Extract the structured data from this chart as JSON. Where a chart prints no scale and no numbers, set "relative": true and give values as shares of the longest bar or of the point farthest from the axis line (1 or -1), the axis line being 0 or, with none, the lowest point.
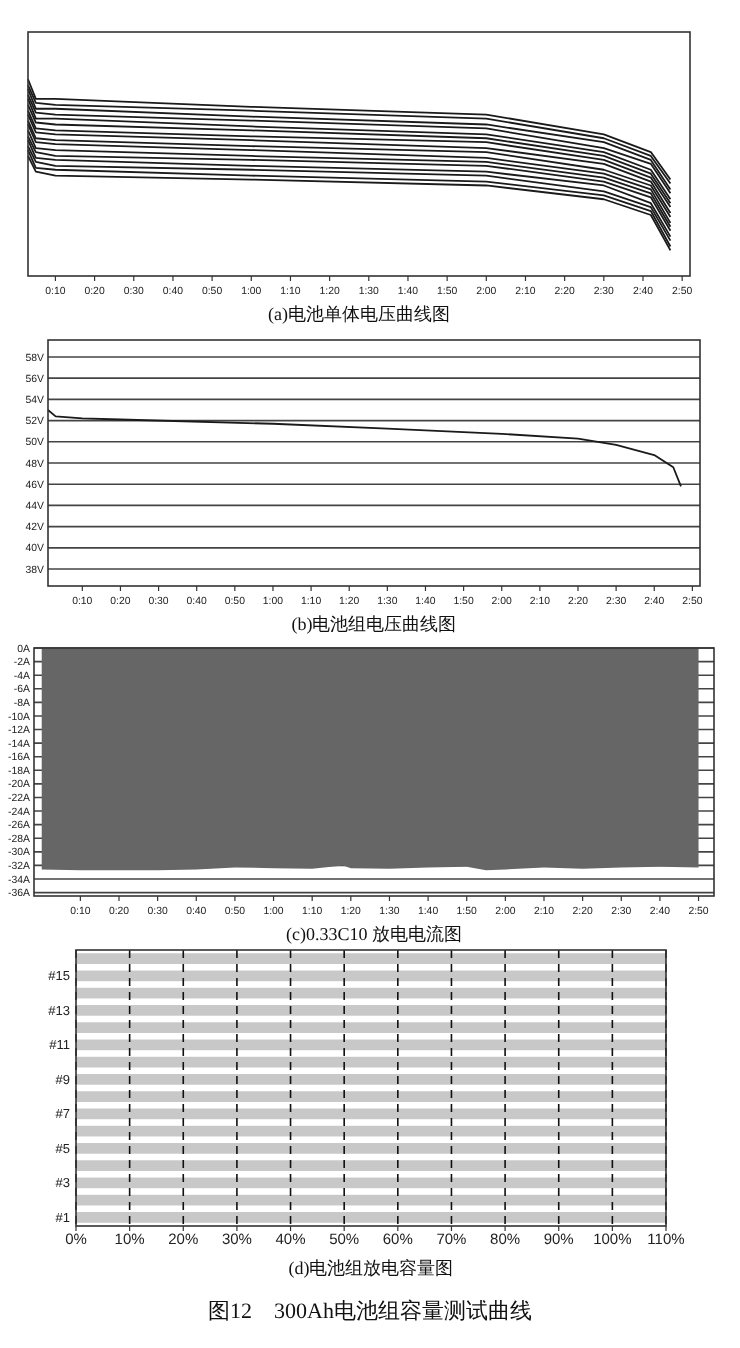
{
  "chart_data": [
    {
      "type": "line",
      "title": "(a)电池单体电压曲线图",
      "relative": true,
      "x": [
        3,
        5,
        10,
        60,
        120,
        150,
        162,
        167
      ],
      "xlim": [
        3,
        172
      ],
      "xticks": [
        {
          "value": 10,
          "label": "0:10"
        },
        {
          "value": 20,
          "label": "0:20"
        },
        {
          "value": 30,
          "label": "0:30"
        },
        {
          "value": 40,
          "label": "0:40"
        },
        {
          "value": 50,
          "label": "0:50"
        },
        {
          "value": 60,
          "label": "1:00"
        },
        {
          "value": 70,
          "label": "1:10"
        },
        {
          "value": 80,
          "label": "1:20"
        },
        {
          "value": 90,
          "label": "1:30"
        },
        {
          "value": 100,
          "label": "1:40"
        },
        {
          "value": 110,
          "label": "1:50"
        },
        {
          "value": 120,
          "label": "2:00"
        },
        {
          "value": 130,
          "label": "2:10"
        },
        {
          "value": 140,
          "label": "2:20"
        },
        {
          "value": 150,
          "label": "2:30"
        },
        {
          "value": 160,
          "label": "2:40"
        },
        {
          "value": 170,
          "label": "2:50"
        }
      ],
      "series": [
        {
          "color": "#1a1a1a",
          "values": [
            1.0,
            0.9,
            0.9,
            0.86,
            0.82,
            0.72,
            0.63,
            0.49
          ]
        },
        {
          "color": "#1a1a1a",
          "values": [
            0.97,
            0.88,
            0.87,
            0.84,
            0.8,
            0.7,
            0.61,
            0.47
          ]
        },
        {
          "color": "#1a1a1a",
          "values": [
            0.95,
            0.85,
            0.85,
            0.81,
            0.77,
            0.68,
            0.59,
            0.44
          ]
        },
        {
          "color": "#1a1a1a",
          "values": [
            0.92,
            0.83,
            0.82,
            0.79,
            0.75,
            0.65,
            0.57,
            0.42
          ]
        },
        {
          "color": "#1a1a1a",
          "values": [
            0.9,
            0.8,
            0.8,
            0.76,
            0.72,
            0.63,
            0.54,
            0.39
          ]
        },
        {
          "color": "#1a1a1a",
          "values": [
            0.87,
            0.78,
            0.77,
            0.74,
            0.7,
            0.61,
            0.52,
            0.37
          ]
        },
        {
          "color": "#1a1a1a",
          "values": [
            0.84,
            0.75,
            0.74,
            0.71,
            0.68,
            0.59,
            0.5,
            0.35
          ]
        },
        {
          "color": "#1a1a1a",
          "values": [
            0.82,
            0.73,
            0.72,
            0.69,
            0.65,
            0.57,
            0.48,
            0.32
          ]
        },
        {
          "color": "#1a1a1a",
          "values": [
            0.79,
            0.7,
            0.69,
            0.66,
            0.63,
            0.54,
            0.46,
            0.3
          ]
        },
        {
          "color": "#1a1a1a",
          "values": [
            0.77,
            0.68,
            0.67,
            0.64,
            0.6,
            0.52,
            0.44,
            0.27
          ]
        },
        {
          "color": "#1a1a1a",
          "values": [
            0.74,
            0.65,
            0.64,
            0.61,
            0.58,
            0.5,
            0.42,
            0.25
          ]
        },
        {
          "color": "#1a1a1a",
          "values": [
            0.71,
            0.63,
            0.61,
            0.59,
            0.56,
            0.48,
            0.4,
            0.23
          ]
        },
        {
          "color": "#1a1a1a",
          "values": [
            0.69,
            0.6,
            0.59,
            0.56,
            0.53,
            0.46,
            0.37,
            0.2
          ]
        },
        {
          "color": "#1a1a1a",
          "values": [
            0.66,
            0.58,
            0.56,
            0.54,
            0.51,
            0.43,
            0.35,
            0.18
          ]
        },
        {
          "color": "#1a1a1a",
          "values": [
            0.64,
            0.55,
            0.54,
            0.51,
            0.48,
            0.41,
            0.33,
            0.15
          ]
        },
        {
          "color": "#1a1a1a",
          "values": [
            0.61,
            0.53,
            0.51,
            0.49,
            0.46,
            0.39,
            0.31,
            0.13
          ]
        }
      ]
    },
    {
      "type": "line",
      "title": "(b)电池组电压曲线图",
      "grid": "y",
      "x": [
        1,
        3,
        10,
        20,
        60,
        90,
        120,
        140,
        150,
        160,
        165,
        167
      ],
      "xlim": [
        1,
        172
      ],
      "ylim": [
        36.4,
        59.6
      ],
      "xticks": [
        {
          "value": 10,
          "label": "0:10"
        },
        {
          "value": 20,
          "label": "0:20"
        },
        {
          "value": 30,
          "label": "0:30"
        },
        {
          "value": 40,
          "label": "0:40"
        },
        {
          "value": 50,
          "label": "0:50"
        },
        {
          "value": 60,
          "label": "1:00"
        },
        {
          "value": 70,
          "label": "1:10"
        },
        {
          "value": 80,
          "label": "1:20"
        },
        {
          "value": 90,
          "label": "1:30"
        },
        {
          "value": 100,
          "label": "1:40"
        },
        {
          "value": 110,
          "label": "1:50"
        },
        {
          "value": 120,
          "label": "2:00"
        },
        {
          "value": 130,
          "label": "2:10"
        },
        {
          "value": 140,
          "label": "2:20"
        },
        {
          "value": 150,
          "label": "2:30"
        },
        {
          "value": 160,
          "label": "2:40"
        },
        {
          "value": 170,
          "label": "2:50"
        }
      ],
      "yticks": [
        {
          "value": 38,
          "label": "38V"
        },
        {
          "value": 40,
          "label": "40V"
        },
        {
          "value": 42,
          "label": "42V"
        },
        {
          "value": 44,
          "label": "44V"
        },
        {
          "value": 46,
          "label": "46V"
        },
        {
          "value": 48,
          "label": "48V"
        },
        {
          "value": 50,
          "label": "50V"
        },
        {
          "value": 52,
          "label": "52V"
        },
        {
          "value": 54,
          "label": "54V"
        },
        {
          "value": 56,
          "label": "56V"
        },
        {
          "value": 58,
          "label": "58V"
        }
      ],
      "series": [
        {
          "color": "#1a1a1a",
          "values": [
            53.0,
            52.4,
            52.2,
            52.1,
            51.7,
            51.25,
            50.75,
            50.3,
            49.7,
            48.75,
            47.6,
            45.8
          ]
        }
      ]
    },
    {
      "type": "area",
      "title": "(c)0.33C10 放电电流图",
      "grid": "y",
      "x": [
        0,
        10,
        20,
        30,
        40,
        50,
        60,
        70,
        78,
        80,
        90,
        100,
        110,
        115,
        120,
        130,
        140,
        150,
        160,
        170
      ],
      "xlim": [
        -2,
        174
      ],
      "ylim": [
        -36.5,
        0
      ],
      "xticks": [
        {
          "value": 10,
          "label": "0:10"
        },
        {
          "value": 20,
          "label": "0:20"
        },
        {
          "value": 30,
          "label": "0:30"
        },
        {
          "value": 40,
          "label": "0:40"
        },
        {
          "value": 50,
          "label": "0:50"
        },
        {
          "value": 60,
          "label": "1:00"
        },
        {
          "value": 70,
          "label": "1:10"
        },
        {
          "value": 80,
          "label": "1:20"
        },
        {
          "value": 90,
          "label": "1:30"
        },
        {
          "value": 100,
          "label": "1:40"
        },
        {
          "value": 110,
          "label": "1:50"
        },
        {
          "value": 120,
          "label": "2:00"
        },
        {
          "value": 130,
          "label": "2:10"
        },
        {
          "value": 140,
          "label": "2:20"
        },
        {
          "value": 150,
          "label": "2:30"
        },
        {
          "value": 160,
          "label": "2:40"
        },
        {
          "value": 170,
          "label": "2:50"
        }
      ],
      "yticks": [
        {
          "value": -36,
          "label": "-36A"
        },
        {
          "value": -34,
          "label": "-34A"
        },
        {
          "value": -32,
          "label": "-32A"
        },
        {
          "value": -30,
          "label": "-30A"
        },
        {
          "value": -28,
          "label": "-28A"
        },
        {
          "value": -26,
          "label": "-26A"
        },
        {
          "value": -24,
          "label": "-24A"
        },
        {
          "value": -22,
          "label": "-22A"
        },
        {
          "value": -20,
          "label": "-20A"
        },
        {
          "value": -18,
          "label": "-18A"
        },
        {
          "value": -16,
          "label": "-16A"
        },
        {
          "value": -14,
          "label": "-14A"
        },
        {
          "value": -12,
          "label": "-12A"
        },
        {
          "value": -10,
          "label": "-10A"
        },
        {
          "value": -8,
          "label": "-8A"
        },
        {
          "value": -6,
          "label": "-6A"
        },
        {
          "value": -4,
          "label": "-4A"
        },
        {
          "value": -2,
          "label": "-2A"
        },
        {
          "value": 0,
          "label": "0A"
        }
      ],
      "series": [
        {
          "color": "#666666",
          "values": [
            -32.6,
            -32.7,
            -32.7,
            -32.7,
            -32.6,
            -32.3,
            -32.4,
            -32.5,
            -32.0,
            -32.4,
            -32.5,
            -32.3,
            -32.2,
            -32.7,
            -32.6,
            -32.3,
            -32.5,
            -32.3,
            -32.2,
            -32.3
          ]
        }
      ]
    },
    {
      "type": "bar",
      "orientation": "horizontal",
      "title": "(d)电池组放电容量图",
      "grid": "x",
      "xlim": [
        0,
        110
      ],
      "categories": [
        null,
        "#15",
        null,
        "#13",
        null,
        "#11",
        null,
        "#9",
        null,
        "#7",
        null,
        "#5",
        null,
        "#3",
        null,
        "#1"
      ],
      "xticks": [
        {
          "value": 0,
          "label": "0%"
        },
        {
          "value": 10,
          "label": "10%"
        },
        {
          "value": 20,
          "label": "20%"
        },
        {
          "value": 30,
          "label": "30%"
        },
        {
          "value": 40,
          "label": "40%"
        },
        {
          "value": 50,
          "label": "50%"
        },
        {
          "value": 60,
          "label": "60%"
        },
        {
          "value": 70,
          "label": "70%"
        },
        {
          "value": 80,
          "label": "80%"
        },
        {
          "value": 90,
          "label": "90%"
        },
        {
          "value": 100,
          "label": "100%"
        },
        {
          "value": 110,
          "label": "110%"
        }
      ],
      "annotations": [
        "图12　300Ah电池组容量测试曲线"
      ],
      "series": [
        {
          "color": "#c8c8c8",
          "values": [
            110,
            110,
            110,
            110,
            110,
            110,
            110,
            110,
            110,
            110,
            110,
            110,
            110,
            110,
            110,
            110
          ]
        }
      ]
    }
  ]
}
